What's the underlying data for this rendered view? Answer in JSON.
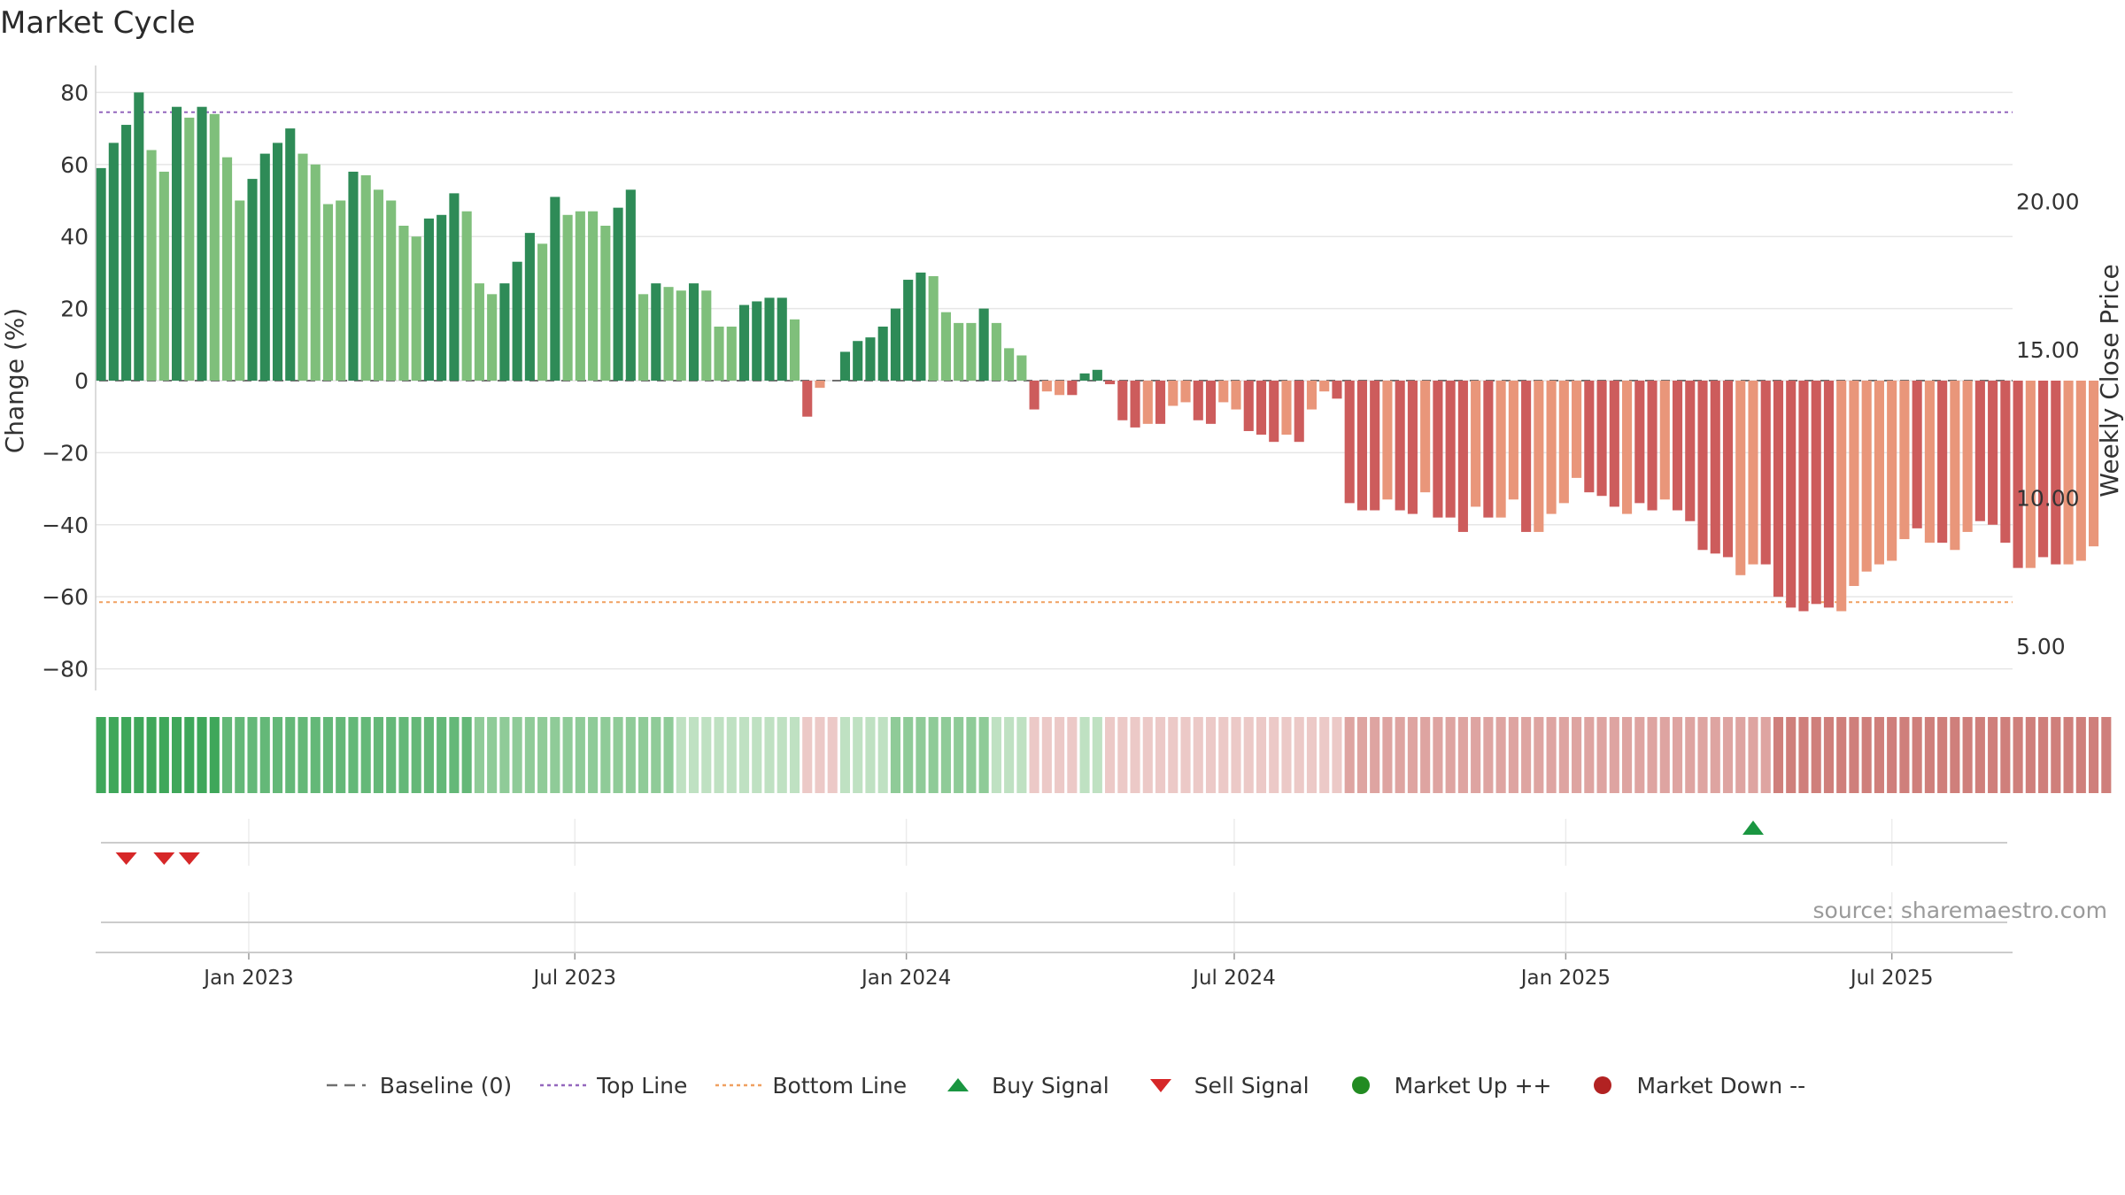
{
  "chart_data": {
    "type": "bar",
    "title": "Market Cycle",
    "ylabel": "Change (%)",
    "y2label": "Weekly Close Price",
    "ylim": [
      -86,
      86
    ],
    "y2lim": [
      3.5,
      24.4
    ],
    "yticks": [
      80,
      60,
      40,
      20,
      0,
      -20,
      -40,
      -60,
      -80
    ],
    "yticklabels": [
      "80",
      "60",
      "40",
      "20",
      "0",
      "−20",
      "−40",
      "−60",
      "−80"
    ],
    "y2ticks": [
      20,
      15,
      10,
      5
    ],
    "y2ticklabels": [
      "20.00",
      "15.00",
      "10.00",
      "5.00"
    ],
    "x_start": "2022-10-08",
    "x_end": "2025-09-06",
    "xticks": [
      "2023-01-01",
      "2023-07-01",
      "2024-01-01",
      "2024-07-01",
      "2025-01-01",
      "2025-07-01"
    ],
    "xticklabels": [
      "Jan 2023",
      "Jul 2023",
      "Jan 2024",
      "Jul 2024",
      "Jan 2025",
      "Jul 2025"
    ],
    "bar_start": "2022-10-11",
    "bar_interval_days": 7,
    "values": [
      59,
      66,
      71,
      80,
      64,
      58,
      76,
      73,
      76,
      74,
      62,
      50,
      56,
      63,
      66,
      70,
      63,
      60,
      49,
      50,
      58,
      57,
      53,
      50,
      43,
      40,
      45,
      46,
      52,
      47,
      27,
      24,
      27,
      33,
      41,
      38,
      51,
      46,
      47,
      47,
      43,
      48,
      53,
      24,
      27,
      26,
      25,
      27,
      25,
      15,
      15,
      21,
      22,
      23,
      23,
      17,
      -10,
      -2,
      null,
      8,
      11,
      12,
      15,
      20,
      28,
      30,
      29,
      19,
      16,
      16,
      20,
      16,
      9,
      7,
      -8,
      -3,
      -4,
      -4,
      2,
      3,
      -1,
      -11,
      -13,
      -12,
      -12,
      -7,
      -6,
      -11,
      -12,
      -6,
      -8,
      -14,
      -15,
      -17,
      -15,
      -17,
      -8,
      -3,
      -5,
      -34,
      -36,
      -36,
      -33,
      -36,
      -37,
      -31,
      -38,
      -38,
      -42,
      -35,
      -38,
      -38,
      -33,
      -42,
      -42,
      -37,
      -34,
      -27,
      -31,
      -32,
      -35,
      -37,
      -34,
      -36,
      -33,
      -36,
      -39,
      -47,
      -48,
      -49,
      -54,
      -51,
      -51,
      -60,
      -63,
      -64,
      -62,
      -63,
      -64,
      -57,
      -53,
      -51,
      -50,
      -44,
      -41,
      -45,
      -45,
      -47,
      -42,
      -39,
      -40,
      -45,
      -52,
      -52,
      -49,
      -51,
      -51,
      -50,
      -46
    ],
    "strength": [
      3,
      3,
      3,
      3,
      2,
      2,
      3,
      2,
      3,
      2,
      2,
      2,
      3,
      3,
      3,
      3,
      2,
      2,
      2,
      2,
      3,
      2,
      2,
      2,
      2,
      2,
      3,
      3,
      3,
      2,
      2,
      2,
      3,
      3,
      3,
      2,
      3,
      2,
      2,
      2,
      2,
      3,
      3,
      2,
      3,
      2,
      2,
      3,
      2,
      2,
      2,
      3,
      3,
      3,
      3,
      2,
      -3,
      -2,
      0,
      3,
      3,
      3,
      3,
      3,
      3,
      3,
      2,
      2,
      2,
      2,
      3,
      2,
      2,
      2,
      -3,
      -2,
      -2,
      -3,
      3,
      3,
      -3,
      -3,
      -3,
      -2,
      -3,
      -2,
      -2,
      -3,
      -3,
      -2,
      -2,
      -3,
      -3,
      -3,
      -2,
      -3,
      -2,
      -2,
      -3,
      -3,
      -3,
      -3,
      -2,
      -3,
      -3,
      -2,
      -3,
      -3,
      -3,
      -2,
      -3,
      -2,
      -2,
      -3,
      -2,
      -2,
      -2,
      -2,
      -3,
      -3,
      -3,
      -2,
      -3,
      -3,
      -2,
      -3,
      -3,
      -3,
      -3,
      -3,
      -2,
      -2,
      -3,
      -3,
      -3,
      -3,
      -3,
      -3,
      -2,
      -2,
      -2,
      -2,
      -2,
      -2,
      -3,
      -2,
      -3,
      -2,
      -2,
      -3,
      -3,
      -3,
      -3,
      -2,
      -3,
      -3,
      -2,
      -2
    ],
    "heat": [
      3,
      3,
      3,
      3,
      3,
      3,
      3,
      3,
      3,
      3,
      2,
      2,
      2,
      2,
      2,
      2,
      2,
      2,
      2,
      2,
      2,
      2,
      2,
      2,
      2,
      2,
      2,
      2,
      2,
      2,
      1,
      1,
      1,
      1,
      1,
      1,
      1,
      1,
      1,
      1,
      1,
      1,
      1,
      1,
      1,
      1,
      0,
      0,
      0,
      0,
      0,
      0,
      0,
      0,
      0,
      0,
      -1,
      -1,
      -1,
      0,
      0,
      0,
      0,
      1,
      1,
      1,
      1,
      1,
      1,
      1,
      1,
      0,
      0,
      0,
      -1,
      -1,
      -1,
      -1,
      0,
      0,
      -1,
      -1,
      -1,
      -1,
      -1,
      -1,
      -1,
      -1,
      -1,
      -1,
      -1,
      -1,
      -1,
      -1,
      -1,
      -1,
      -1,
      -1,
      -1,
      -2,
      -2,
      -2,
      -2,
      -2,
      -2,
      -2,
      -2,
      -2,
      -2,
      -2,
      -2,
      -2,
      -2,
      -2,
      -2,
      -2,
      -2,
      -2,
      -2,
      -2,
      -2,
      -2,
      -2,
      -2,
      -2,
      -2,
      -2,
      -2,
      -2,
      -2,
      -2,
      -2,
      -2,
      -3,
      -3,
      -3,
      -3,
      -3,
      -3,
      -3,
      -3,
      -3,
      -3,
      -3,
      -3,
      -3,
      -3,
      -3,
      -3,
      -3,
      -3,
      -3,
      -3,
      -3,
      -3,
      -3,
      -3,
      -3,
      -3,
      -3
    ],
    "top_line": 74.5,
    "bottom_line": -61.5,
    "baseline": 0,
    "buy_signals": [
      "2025-04-15"
    ],
    "sell_signals": [
      "2022-10-25",
      "2022-11-15",
      "2022-11-29"
    ],
    "legend": {
      "position": "bottom-center",
      "items": [
        {
          "label": "Baseline (0)",
          "kind": "dashed-line",
          "color": "#707070"
        },
        {
          "label": "Top Line",
          "kind": "dotted-line",
          "color": "#9467bd"
        },
        {
          "label": "Bottom Line",
          "kind": "dotted-line",
          "color": "#f0a060"
        },
        {
          "label": "Buy Signal",
          "kind": "triangle-up",
          "color": "#1a9641"
        },
        {
          "label": "Sell Signal",
          "kind": "triangle-down",
          "color": "#d62728"
        },
        {
          "label": "Market Up ++",
          "kind": "circle",
          "color": "#228b22"
        },
        {
          "label": "Market Down --",
          "kind": "circle",
          "color": "#b22222"
        }
      ]
    },
    "annotation": "source: sharemaestro.com",
    "grid": true
  },
  "colors": {
    "up_strong": "#2e8b57",
    "up_weak": "#7fbf7b",
    "down_strong": "#cd5c5c",
    "down_weak": "#e9967a",
    "heat_pos_3": "#3fa75a",
    "heat_pos_2": "#64b878",
    "heat_pos_1": "#8fcb98",
    "heat_0": "#bfe1c2",
    "heat_neg_1": "#ecc9c7",
    "heat_neg_2": "#dea4a1",
    "heat_neg_3": "#cf7f7b",
    "grid": "#e6e6e6",
    "buy": "#1a9641",
    "sell": "#d62728"
  }
}
